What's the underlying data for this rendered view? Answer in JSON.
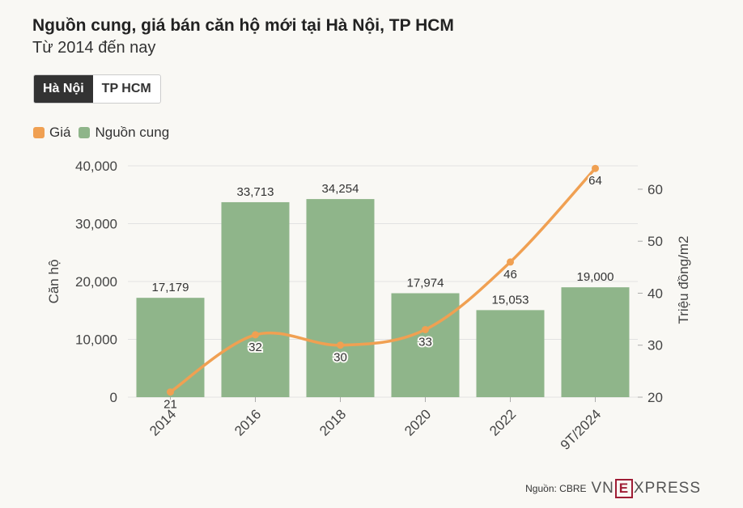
{
  "header": {
    "title": "Nguồn cung, giá bán căn hộ mới tại Hà Nội, TP HCM",
    "subtitle": "Từ 2014 đến nay"
  },
  "tabs": [
    {
      "label": "Hà Nội",
      "active": true
    },
    {
      "label": "TP HCM",
      "active": false
    }
  ],
  "legend": {
    "price_label": "Giá",
    "supply_label": "Nguồn cung",
    "price_color": "#f0a052",
    "supply_color": "#8fb58a"
  },
  "chart_data": {
    "type": "bar",
    "categories": [
      "2014",
      "2016",
      "2018",
      "2020",
      "2022",
      "9T/2024"
    ],
    "series": [
      {
        "name": "Nguồn cung",
        "type": "bar",
        "axis": "left",
        "values": [
          17179,
          33713,
          34254,
          17974,
          15053,
          19000
        ],
        "labels": [
          "17,179",
          "33,713",
          "34,254",
          "17,974",
          "15,053",
          "19,000"
        ]
      },
      {
        "name": "Giá",
        "type": "line",
        "axis": "right",
        "values": [
          21,
          32,
          30,
          33,
          46,
          64
        ],
        "labels": [
          "21",
          "32",
          "30",
          "33",
          "46",
          "64"
        ]
      }
    ],
    "ylabel_left": "Căn hộ",
    "ylabel_right": "Triệu đồng/m2",
    "ylim_left": [
      0,
      40000
    ],
    "yticks_left": [
      "0",
      "10,000",
      "20,000",
      "30,000",
      "40,000"
    ],
    "yticks_left_values": [
      0,
      10000,
      20000,
      30000,
      40000
    ],
    "ylim_right": [
      20,
      64.5
    ],
    "yticks_right": [
      "20",
      "30",
      "40",
      "50",
      "60"
    ],
    "yticks_right_values": [
      20,
      30,
      40,
      50,
      60
    ],
    "grid": true,
    "legend_position": "top-left"
  },
  "footer": {
    "source": "Nguồn: CBRE",
    "logo_left": "VN",
    "logo_mid": "E",
    "logo_right": "XPRESS"
  }
}
